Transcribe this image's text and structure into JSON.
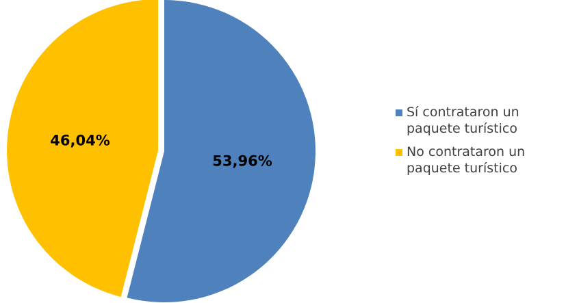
{
  "chart_data": {
    "type": "pie",
    "title": "",
    "slices": [
      {
        "label": "Sí contrataron un paquete turístico",
        "value": 53.96,
        "value_label": "53,96%",
        "color": "#4F81BD",
        "exploded": false
      },
      {
        "label": "No contrataron un paquete turístico",
        "value": 46.04,
        "value_label": "46,04%",
        "color": "#FFC000",
        "exploded": true
      }
    ],
    "legend_position": "right"
  }
}
